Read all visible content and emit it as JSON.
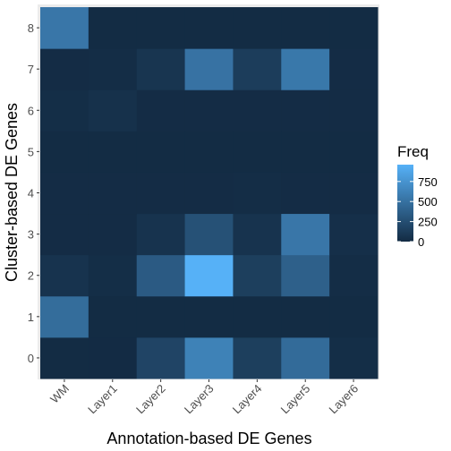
{
  "chart_data": {
    "type": "heatmap",
    "xlabel": "Annotation-based DE Genes",
    "ylabel": "Cluster-based DE Genes",
    "x_categories": [
      "WM",
      "Layer1",
      "Layer2",
      "Layer3",
      "Layer4",
      "Layer5",
      "Layer6"
    ],
    "y_categories": [
      "0",
      "1",
      "2",
      "3",
      "4",
      "5",
      "6",
      "7",
      "8"
    ],
    "values": [
      [
        5,
        3,
        180,
        620,
        140,
        460,
        20
      ],
      [
        470,
        5,
        5,
        5,
        5,
        5,
        5
      ],
      [
        60,
        20,
        340,
        960,
        140,
        380,
        15
      ],
      [
        10,
        10,
        60,
        270,
        60,
        540,
        30
      ],
      [
        10,
        10,
        10,
        10,
        15,
        10,
        10
      ],
      [
        5,
        5,
        5,
        5,
        5,
        5,
        5
      ],
      [
        20,
        40,
        10,
        10,
        10,
        10,
        10
      ],
      [
        10,
        15,
        70,
        510,
        130,
        550,
        10
      ],
      [
        540,
        5,
        5,
        5,
        5,
        5,
        5
      ]
    ],
    "legend": {
      "title": "Freq",
      "breaks": [
        0,
        250,
        500,
        750
      ],
      "range": [
        0,
        960
      ],
      "placement": "right"
    },
    "colors": {
      "low": "#132B43",
      "high": "#56B1F7",
      "panel": "#EBEBEB"
    }
  }
}
